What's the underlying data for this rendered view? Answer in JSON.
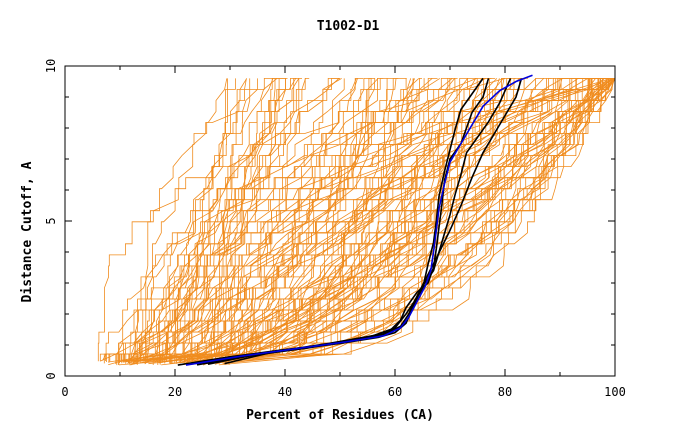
{
  "chart_data": {
    "type": "line",
    "title": "T1002-D1",
    "xlabel": "Percent of Residues (CA)",
    "ylabel": "Distance Cutoff, A",
    "xlim": [
      0,
      100
    ],
    "ylim": [
      0,
      10
    ],
    "x_ticks": [
      "0",
      "20",
      "40",
      "60",
      "80",
      "100"
    ],
    "y_ticks": [
      "0",
      "5",
      "10"
    ],
    "grid": false,
    "colors": {
      "background_models": "#f08c1e",
      "highlight_a": "#000000",
      "highlight_b": "#0000dd"
    },
    "highlight_series": [
      {
        "name": "model-black-1",
        "color": "#000000",
        "points": [
          [
            20.5,
            0.35
          ],
          [
            30,
            0.62
          ],
          [
            40,
            0.85
          ],
          [
            50,
            1.05
          ],
          [
            57,
            1.25
          ],
          [
            60,
            1.4
          ],
          [
            62,
            1.7
          ],
          [
            63,
            2.1
          ],
          [
            64,
            2.5
          ],
          [
            65,
            2.9
          ],
          [
            67,
            3.4
          ],
          [
            68,
            4.0
          ],
          [
            69,
            4.6
          ],
          [
            70,
            5.2
          ],
          [
            71,
            5.9
          ],
          [
            72,
            6.5
          ],
          [
            73,
            7.2
          ],
          [
            75,
            7.7
          ],
          [
            77,
            8.2
          ],
          [
            79,
            8.8
          ],
          [
            80,
            9.2
          ],
          [
            81,
            9.6
          ]
        ]
      },
      {
        "name": "model-black-2",
        "color": "#000000",
        "points": [
          [
            26,
            0.38
          ],
          [
            35,
            0.7
          ],
          [
            45,
            0.95
          ],
          [
            54,
            1.2
          ],
          [
            59,
            1.45
          ],
          [
            61,
            1.8
          ],
          [
            62,
            2.2
          ],
          [
            64,
            2.7
          ],
          [
            66,
            3.0
          ],
          [
            67,
            3.5
          ],
          [
            67.5,
            4.1
          ],
          [
            68,
            4.8
          ],
          [
            68.5,
            5.5
          ],
          [
            69,
            6.3
          ],
          [
            70,
            7.0
          ],
          [
            72,
            7.5
          ],
          [
            73,
            8.0
          ],
          [
            74,
            8.5
          ],
          [
            76,
            9.0
          ],
          [
            77,
            9.6
          ]
        ]
      },
      {
        "name": "model-black-3",
        "color": "#000000",
        "points": [
          [
            29,
            0.4
          ],
          [
            38,
            0.78
          ],
          [
            48,
            1.05
          ],
          [
            56,
            1.3
          ],
          [
            60,
            1.55
          ],
          [
            62,
            2.0
          ],
          [
            65,
            2.8
          ],
          [
            66,
            3.6
          ],
          [
            67,
            4.3
          ],
          [
            67.5,
            5.0
          ],
          [
            68,
            5.8
          ],
          [
            69,
            6.6
          ],
          [
            70,
            7.3
          ],
          [
            71,
            8.0
          ],
          [
            72,
            8.6
          ],
          [
            74,
            9.1
          ],
          [
            76,
            9.6
          ]
        ]
      },
      {
        "name": "model-black-4",
        "color": "#000000",
        "points": [
          [
            24,
            0.36
          ],
          [
            34,
            0.66
          ],
          [
            44,
            0.9
          ],
          [
            53,
            1.15
          ],
          [
            58,
            1.35
          ],
          [
            61,
            1.6
          ],
          [
            62.5,
            2.0
          ],
          [
            63.5,
            2.4
          ],
          [
            65.5,
            3.1
          ],
          [
            67.5,
            3.8
          ],
          [
            70,
            4.7
          ],
          [
            72,
            5.5
          ],
          [
            74,
            6.4
          ],
          [
            76,
            7.2
          ],
          [
            78,
            7.8
          ],
          [
            80,
            8.4
          ],
          [
            82,
            9.0
          ],
          [
            83,
            9.6
          ]
        ]
      },
      {
        "name": "model-blue",
        "color": "#0000dd",
        "points": [
          [
            22,
            0.35
          ],
          [
            32,
            0.64
          ],
          [
            42,
            0.88
          ],
          [
            51,
            1.1
          ],
          [
            58,
            1.3
          ],
          [
            61,
            1.55
          ],
          [
            62.5,
            1.9
          ],
          [
            64,
            2.4
          ],
          [
            65.5,
            2.9
          ],
          [
            66.5,
            3.4
          ],
          [
            67,
            4.0
          ],
          [
            67.5,
            4.7
          ],
          [
            68,
            5.4
          ],
          [
            69,
            6.2
          ],
          [
            70,
            6.9
          ],
          [
            72,
            7.5
          ],
          [
            74,
            8.1
          ],
          [
            76,
            8.7
          ],
          [
            79,
            9.2
          ],
          [
            82,
            9.5
          ],
          [
            85,
            9.7
          ]
        ]
      }
    ],
    "background_series_count": 140
  }
}
